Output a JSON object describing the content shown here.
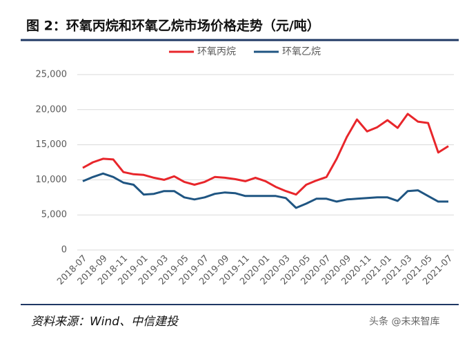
{
  "chart_data": {
    "type": "line",
    "title": "图 2：环氧丙烷和环氧乙烷市场价格走势（元/吨）",
    "categories": [
      "2018-07",
      null,
      "2018-09",
      null,
      "2018-11",
      null,
      "2019-01",
      null,
      "2019-03",
      null,
      "2019-05",
      null,
      "2019-07",
      null,
      "2019-09",
      null,
      "2019-11",
      null,
      "2020-01",
      null,
      "2020-03",
      null,
      "2020-05",
      null,
      "2020-07",
      null,
      "2020-09",
      null,
      "2020-11",
      null,
      "2021-01",
      null,
      "2021-03",
      null,
      "2021-05",
      null,
      "2021-07"
    ],
    "series": [
      {
        "name": "环氧丙烷",
        "color": "#e8262b",
        "values": [
          11700,
          12500,
          13000,
          12900,
          11100,
          10800,
          10700,
          10300,
          10000,
          10500,
          9700,
          9300,
          9700,
          10400,
          10300,
          10100,
          9800,
          10300,
          9800,
          9000,
          8400,
          7900,
          9300,
          9900,
          10400,
          13000,
          16100,
          18600,
          16900,
          17500,
          18500,
          17400,
          19400,
          18300,
          18100,
          13900,
          14800
        ]
      },
      {
        "name": "环氧乙烷",
        "color": "#1f5582",
        "values": [
          9800,
          10400,
          10900,
          10400,
          9600,
          9300,
          7900,
          8000,
          8400,
          8400,
          7500,
          7200,
          7500,
          8000,
          8200,
          8100,
          7700,
          7700,
          7700,
          7700,
          7400,
          6000,
          6600,
          7300,
          7300,
          6900,
          7200,
          7300,
          7400,
          7500,
          7500,
          7000,
          8400,
          8500,
          7700,
          6900,
          6900
        ]
      }
    ],
    "ylim": [
      0,
      25000
    ],
    "yticks": [
      0,
      {
        "value": 5000,
        "label": "5,000"
      },
      {
        "value": 10000,
        "label": "10,000"
      },
      {
        "value": 15000,
        "label": "15,000"
      },
      {
        "value": 20000,
        "label": "20,000"
      },
      {
        "value": 25000,
        "label": "25,000"
      }
    ],
    "grid": true
  },
  "footer": {
    "source": "资料来源：Wind、中信建投",
    "watermark": "头条 @未来智库"
  }
}
